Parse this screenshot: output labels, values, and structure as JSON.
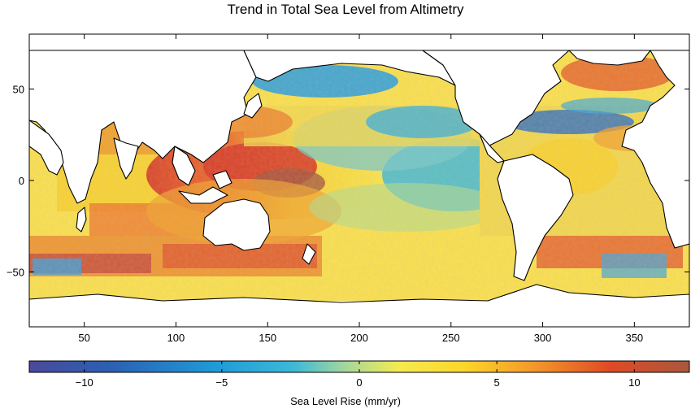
{
  "figure": {
    "title": "Trend in Total Sea Level from Altimetry",
    "colorbar_label": "Sea Level Rise (mm/yr)"
  },
  "map": {
    "x_ticks": [
      50,
      100,
      150,
      200,
      250,
      300,
      350
    ],
    "y_ticks": [
      50,
      0,
      -50
    ],
    "x_range": [
      20,
      380
    ],
    "y_range": [
      -80,
      80
    ]
  },
  "colorbar": {
    "range": [
      -12,
      12
    ],
    "ticks": [
      -10,
      -5,
      0,
      5,
      10
    ],
    "colors": [
      "#3a4a9c",
      "#2a6cc0",
      "#1fa0dc",
      "#34b8dc",
      "#78c8b8",
      "#c8e07c",
      "#fde64a",
      "#fbd32e",
      "#f7a32a",
      "#ef6a26",
      "#d93a24",
      "#a8553c"
    ]
  }
}
